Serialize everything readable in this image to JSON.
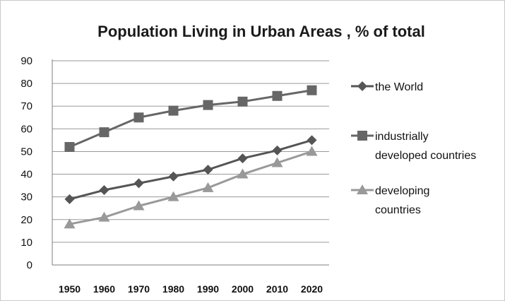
{
  "chart_data": {
    "type": "line",
    "title": "Population Living in Urban Areas , % of total",
    "categories": [
      "1950",
      "1960",
      "1970",
      "1980",
      "1990",
      "2000",
      "2010",
      "2020"
    ],
    "ylim": [
      0,
      90
    ],
    "yticks": [
      0,
      10,
      20,
      30,
      40,
      50,
      60,
      70,
      80,
      90
    ],
    "grid": "horizontal",
    "legend_position": "right",
    "series": [
      {
        "name": "the World",
        "legend_lines": [
          "the World"
        ],
        "marker": "diamond",
        "color": "#555555",
        "values": [
          29,
          33,
          36,
          39,
          42,
          47,
          50.5,
          55
        ]
      },
      {
        "name": "industrially developed countries",
        "legend_lines": [
          "industrially",
          "developed countries"
        ],
        "marker": "square",
        "color": "#666666",
        "values": [
          52,
          58.5,
          65,
          68,
          70.5,
          72,
          74.5,
          77
        ]
      },
      {
        "name": "developing countries",
        "legend_lines": [
          "developing",
          "countries"
        ],
        "marker": "triangle",
        "color": "#999999",
        "values": [
          18,
          21,
          26,
          30,
          34,
          40,
          45,
          50
        ]
      }
    ]
  }
}
